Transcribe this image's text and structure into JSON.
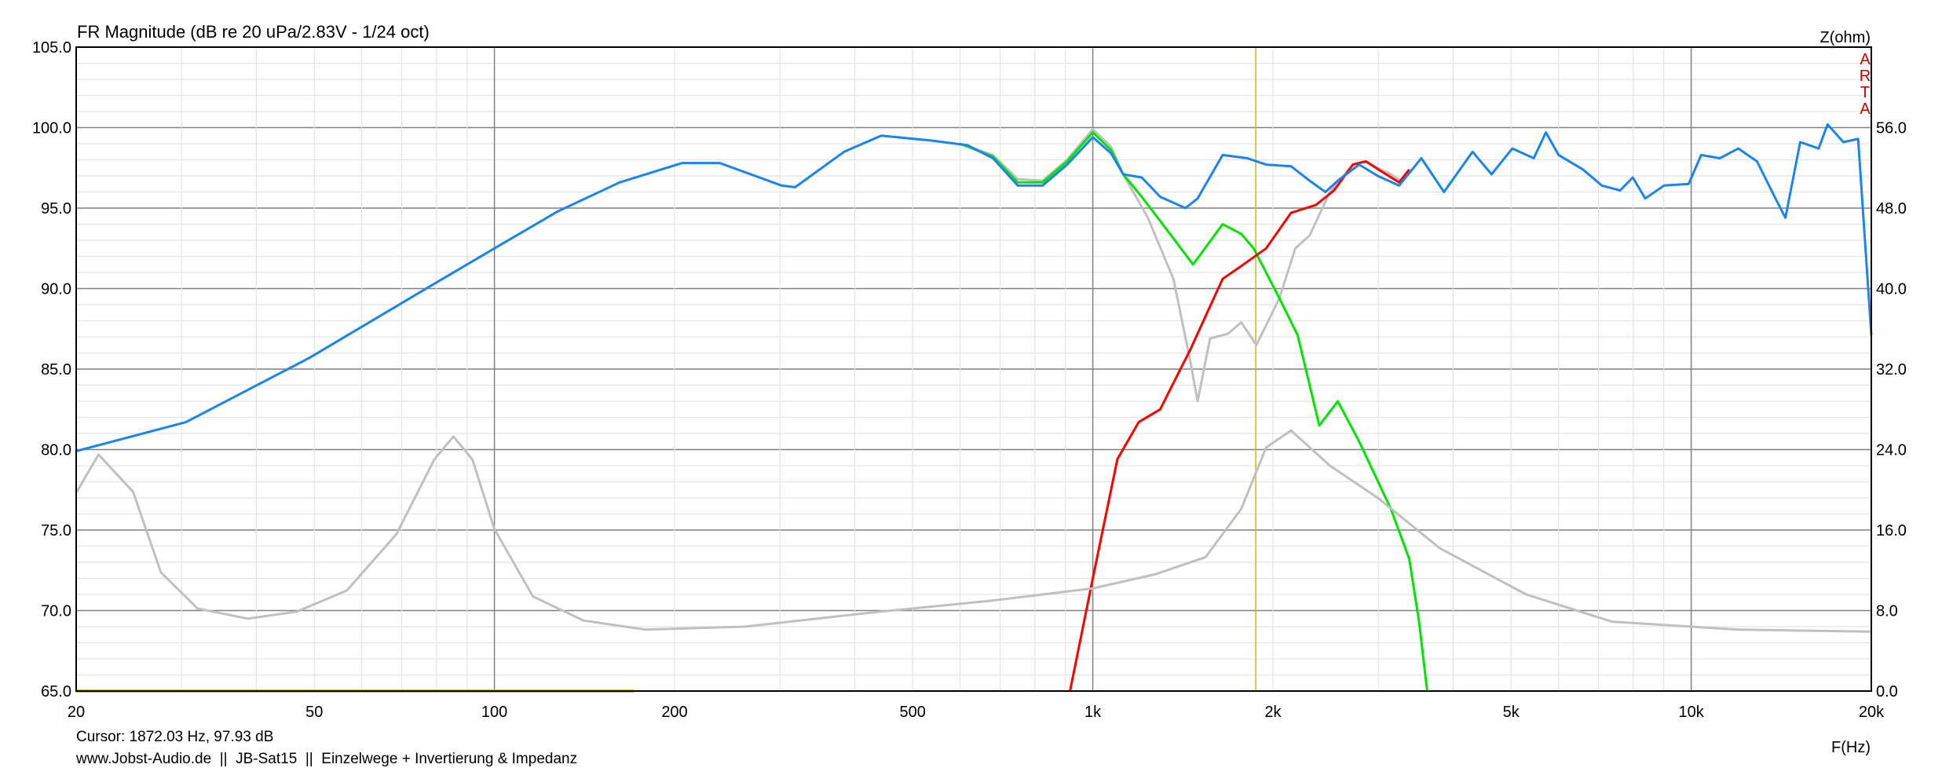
{
  "chart_data": {
    "type": "line",
    "title": "FR Magnitude (dB re 20 uPa/2.83V - 1/24 oct)",
    "xlabel": "F(Hz)",
    "ylabel_right": "Z(ohm)",
    "x_scale": "log",
    "xlim": [
      20,
      20000
    ],
    "ylim": [
      65,
      105
    ],
    "y2lim": [
      0,
      64
    ],
    "grid": true,
    "x_ticks": [
      20,
      50,
      100,
      200,
      500,
      1000,
      2000,
      5000,
      10000,
      20000
    ],
    "x_tick_labels": [
      "20",
      "50",
      "100",
      "200",
      "500",
      "1k",
      "2k",
      "5k",
      "10k",
      "20k"
    ],
    "y_ticks": [
      65,
      70,
      75,
      80,
      85,
      90,
      95,
      100,
      105
    ],
    "y_tick_labels": [
      "65.0",
      "70.0",
      "75.0",
      "80.0",
      "85.0",
      "90.0",
      "95.0",
      "100.0",
      "105.0"
    ],
    "y2_ticks": [
      0,
      8,
      16,
      24,
      32,
      40,
      48,
      56
    ],
    "y2_tick_labels": [
      "0.0",
      "8.0",
      "16.0",
      "24.0",
      "32.0",
      "40.0",
      "48.0",
      "56.0"
    ],
    "watermark": "ARTA",
    "cursor": {
      "freq": 1872.03,
      "db": 97.93,
      "label": "Cursor: 1872.03 Hz, 97.93 dB"
    },
    "footer": "www.Jobst-Audio.de  ||  JB-Sat15  ||  Einzelwege + Invertierung & Impedanz",
    "series": [
      {
        "color": "#c0c0c0",
        "axis": "left",
        "x": [
          600,
          681,
          749,
          824,
          906,
          1000,
          1073,
          1124,
          1236,
          1364,
          1455,
          1497,
          1570,
          1683,
          1770,
          1877,
          2050,
          2180,
          2303,
          2490,
          2720,
          2850,
          2994,
          3150,
          3300
        ],
        "y": [
          99.0,
          98.3,
          96.8,
          96.7,
          98.0,
          99.9,
          98.8,
          97.1,
          94.4,
          90.6,
          85.5,
          83.0,
          86.9,
          87.2,
          87.9,
          86.5,
          89.4,
          92.5,
          93.3,
          96.0,
          97.7,
          97.9,
          97.5,
          97.1,
          96.6
        ]
      },
      {
        "color": "#00e600",
        "axis": "left",
        "x": [
          600,
          681,
          749,
          824,
          906,
          1000,
          1073,
          1124,
          1207,
          1296,
          1471,
          1648,
          1770,
          1857,
          2050,
          2200,
          2390,
          2567,
          2787,
          3150,
          3380,
          3510,
          3620
        ],
        "y": [
          99.0,
          98.2,
          96.6,
          96.6,
          97.9,
          99.7,
          98.6,
          97.1,
          95.7,
          94.2,
          91.5,
          94.0,
          93.4,
          92.5,
          89.4,
          87.1,
          81.5,
          83.0,
          80.5,
          76.3,
          73.2,
          69.3,
          65.0
        ]
      },
      {
        "color": "#ff0000",
        "axis": "left",
        "x": [
          916,
          1000,
          1099,
          1193,
          1296,
          1459,
          1648,
          1770,
          1948,
          2144,
          2360,
          2530,
          2720,
          2860,
          3000,
          3249,
          3380
        ],
        "y": [
          65.0,
          72.0,
          79.4,
          81.7,
          82.5,
          86.3,
          90.6,
          91.4,
          92.5,
          94.7,
          95.2,
          96.1,
          97.7,
          97.9,
          97.4,
          96.6,
          97.4
        ]
      },
      {
        "color": "#1a84f0",
        "axis": "left",
        "x": [
          20,
          30.5,
          49.1,
          79.3,
          100,
          127.7,
          162,
          206,
          238,
          302,
          318,
          384,
          443,
          536,
          618,
          681,
          749,
          824,
          906,
          1000,
          1073,
          1124,
          1207,
          1296,
          1428,
          1497,
          1648,
          1812,
          1948,
          2144,
          2303,
          2447,
          2567,
          2787,
          2994,
          3249,
          3541,
          3862,
          4312,
          4638,
          5024,
          5456,
          5718,
          6005,
          6592,
          7090,
          7606,
          7987,
          8380,
          9008,
          9904,
          10390,
          11165,
          11990,
          12880,
          13830,
          14370,
          15210,
          16330,
          16900,
          17960,
          19010,
          20000
        ],
        "y": [
          79.9,
          81.7,
          85.7,
          90.3,
          92.5,
          94.8,
          96.6,
          97.8,
          97.8,
          96.4,
          96.3,
          98.5,
          99.5,
          99.2,
          98.9,
          98.1,
          96.4,
          96.4,
          97.7,
          99.4,
          98.4,
          97.1,
          96.9,
          95.7,
          95.0,
          95.6,
          98.3,
          98.1,
          97.7,
          97.6,
          96.7,
          96.0,
          96.7,
          97.7,
          97.0,
          96.4,
          98.1,
          96.0,
          98.5,
          97.1,
          98.7,
          98.1,
          99.7,
          98.3,
          97.4,
          96.4,
          96.1,
          96.9,
          95.6,
          96.4,
          96.5,
          98.3,
          98.1,
          98.7,
          97.9,
          95.6,
          94.4,
          99.1,
          98.7,
          100.2,
          99.1,
          99.3,
          87.1
        ]
      },
      {
        "color": "#c0c0c0",
        "axis": "right",
        "x": [
          20,
          21.8,
          24.9,
          27.7,
          31.9,
          38.7,
          46.8,
          56.7,
          68.6,
          79.3,
          85.4,
          91.9,
          100,
          116,
          141,
          179,
          262,
          426,
          681,
          1000,
          1270,
          1543,
          1770,
          1948,
          2144,
          2490,
          2994,
          3800,
          5300,
          7370,
          11990,
          20000
        ],
        "y": [
          19.7,
          23.5,
          19.8,
          11.8,
          8.2,
          7.2,
          7.9,
          10.0,
          15.6,
          23.0,
          25.3,
          23.0,
          16.1,
          9.4,
          7.0,
          6.1,
          6.4,
          7.8,
          9.0,
          10.2,
          11.6,
          13.3,
          18.1,
          24.2,
          25.9,
          22.4,
          19.2,
          14.2,
          9.6,
          6.9,
          6.1,
          5.9
        ]
      },
      {
        "color": "#c8c000",
        "axis": "left",
        "x": [
          20,
          171
        ],
        "y": [
          65.0,
          65.0
        ]
      }
    ]
  }
}
